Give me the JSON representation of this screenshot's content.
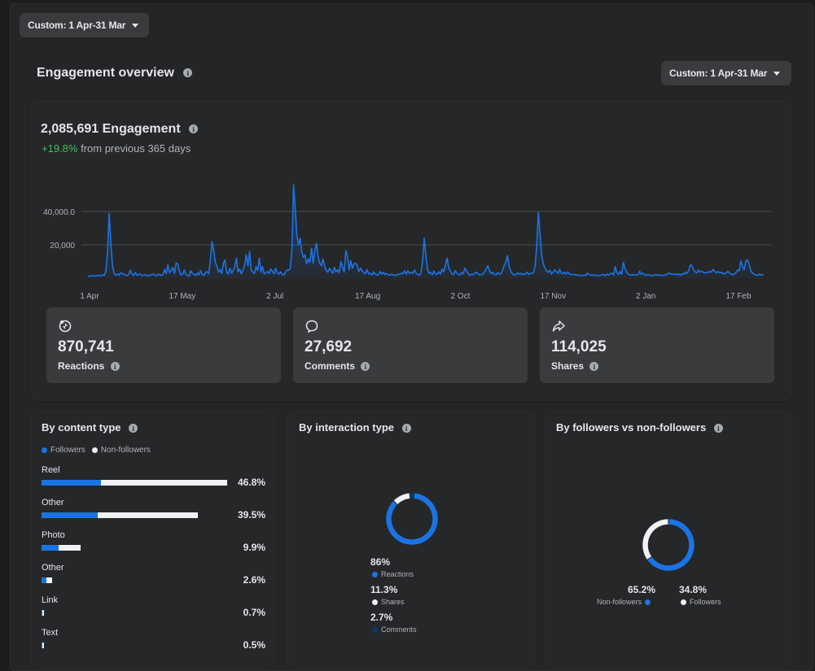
{
  "top_filter": {
    "label": "Custom: 1 Apr-31 Mar"
  },
  "engagement": {
    "section_title": "Engagement overview",
    "filter_label": "Custom: 1 Apr-31 Mar",
    "total": "2,085,691 Engagement",
    "change": "+19.8%",
    "change_text": "from previous 365 days"
  },
  "chart_data": {
    "type": "line",
    "x_ticks": [
      "1 Apr",
      "17 May",
      "2 Jul",
      "17 Aug",
      "2 Oct",
      "17 Nov",
      "2 Jan",
      "17 Feb"
    ],
    "y_ticks": [
      "40,000.0",
      "20,000"
    ],
    "ylim": [
      0,
      40000
    ],
    "grid": true,
    "series": [
      {
        "values": [
          1200,
          1100,
          1500,
          1300,
          1400,
          1200,
          1800,
          1500,
          1300,
          2000,
          1700,
          4000,
          16000,
          39000,
          21000,
          8000,
          3000,
          1800,
          2500,
          1600,
          3200,
          2800,
          2400,
          1800,
          1500,
          2200,
          4800,
          2500,
          1600,
          3400,
          1800,
          2200,
          2600,
          1500,
          1800,
          2200,
          1600,
          1400,
          1900,
          2100,
          2500,
          1800,
          1400,
          2400,
          2000,
          1500,
          2200,
          5200,
          2800,
          8000,
          3200,
          4500,
          6500,
          2800,
          9000,
          8500,
          4500,
          1800,
          2300,
          5000,
          2200,
          1600,
          1300,
          4500,
          2800,
          2400,
          1500,
          3000,
          2000,
          4600,
          2200,
          1600,
          3200,
          4000,
          2600,
          11000,
          22000,
          17000,
          10000,
          7000,
          3600,
          5200,
          2800,
          9000,
          11000,
          3400,
          2400,
          6000,
          3000,
          4500,
          7000,
          12000,
          3800,
          5500,
          2600,
          4800,
          8000,
          14000,
          7500,
          16000,
          5000,
          3800,
          2800,
          7000,
          4500,
          12000,
          3600,
          7000,
          2600,
          3000,
          4000,
          2800,
          5500,
          4200,
          2500,
          6000,
          3200,
          2500,
          3800,
          2200,
          1800,
          3600,
          5000,
          4800,
          6000,
          18000,
          56000,
          42000,
          26000,
          20000,
          24000,
          16000,
          12500,
          14000,
          8500,
          11500,
          9500,
          18000,
          9000,
          17000,
          21000,
          13000,
          9000,
          7500,
          11500,
          7200,
          4500,
          3600,
          6000,
          4500,
          3000,
          6500,
          3800,
          5000,
          3200,
          10000,
          6600,
          3600,
          16500,
          13000,
          5000,
          10500,
          6000,
          8500,
          9000,
          7500,
          4000,
          6000,
          4500,
          3200,
          2600,
          5200,
          2500,
          3000,
          2000,
          3800,
          2500,
          1800,
          2200,
          4000,
          2400,
          3500,
          2200,
          2800,
          2000,
          1800,
          2500,
          2000,
          1600,
          1800,
          2400,
          2200,
          3000,
          2600,
          4400,
          2400,
          4500,
          3000,
          3600,
          2800,
          5000,
          3000,
          2200,
          1800,
          2800,
          10000,
          24000,
          14000,
          5500,
          2800,
          3500,
          2000,
          4400,
          2600,
          2400,
          3800,
          2400,
          5500,
          3800,
          8000,
          12000,
          6000,
          4400,
          2500,
          2200,
          4500,
          3300,
          2200,
          1800,
          3400,
          2600,
          6000,
          4600,
          2800,
          1600,
          2400,
          2100,
          2900,
          3600,
          2700,
          1800,
          2200,
          2500,
          3800,
          5600,
          7500,
          4500,
          2800,
          3500,
          2200,
          2000,
          3200,
          2500,
          2800,
          4500,
          7500,
          9500,
          13500,
          7500,
          4000,
          2800,
          1800,
          2200,
          3100,
          2400,
          3000,
          2000,
          2800,
          2200,
          3600,
          2200,
          2800,
          3000,
          3200,
          7500,
          20000,
          39500,
          26000,
          14000,
          8500,
          6000,
          4200,
          3500,
          4800,
          2500,
          3600,
          5000,
          4000,
          2800,
          5200,
          3000,
          2600,
          3600,
          2400,
          3800,
          2600,
          2200,
          2100,
          2400,
          1800,
          2000,
          1700,
          1600,
          1700,
          1800,
          1600,
          3000,
          2200,
          1800,
          2000,
          1600,
          1700,
          1800,
          1500,
          1700,
          2100,
          2000,
          1500,
          2500,
          1800,
          2600,
          3000,
          1900,
          7000,
          3500,
          2200,
          4000,
          2400,
          9500,
          6000,
          3600,
          2600,
          2000,
          1800,
          2200,
          1800,
          1900,
          2100,
          4200,
          2300,
          3000,
          2100,
          1700,
          2200,
          1800,
          1600,
          1600,
          1800,
          2000,
          1700,
          2000,
          1800,
          1600,
          1700,
          2000,
          2400,
          3100,
          2600,
          2200,
          2400,
          2600,
          2000,
          2500,
          1800,
          2600,
          2300,
          3500,
          2900,
          4400,
          8000,
          7500,
          5000,
          3800,
          3200,
          4800,
          3600,
          4200,
          3600,
          3000,
          3500,
          3300,
          4200,
          3600,
          5300,
          4000,
          3200,
          4000,
          3200,
          3500,
          2900,
          2600,
          3100,
          4100,
          3000,
          2400,
          1900,
          2600,
          3200,
          5000,
          4400,
          10500,
          7000,
          5000,
          10000,
          11000,
          8600,
          4500,
          3200,
          2600,
          1800,
          1700,
          2400,
          1900,
          2200,
          2000
        ]
      }
    ]
  },
  "metrics": [
    {
      "icon": "reactions-icon",
      "value": "870,741",
      "label": "Reactions"
    },
    {
      "icon": "comment-icon",
      "value": "27,692",
      "label": "Comments"
    },
    {
      "icon": "share-icon",
      "value": "114,025",
      "label": "Shares"
    }
  ],
  "by_content": {
    "title": "By content type",
    "legend": [
      "Followers",
      "Non-followers"
    ],
    "rows": [
      {
        "label": "Reel",
        "pct": "46.8%",
        "total": 46.8,
        "followers_share": 0.32
      },
      {
        "label": "Other",
        "pct": "39.5%",
        "total": 39.5,
        "followers_share": 0.36
      },
      {
        "label": "Photo",
        "pct": "9.9%",
        "total": 9.9,
        "followers_share": 0.44
      },
      {
        "label": "Other",
        "pct": "2.6%",
        "total": 2.6,
        "followers_share": 0.5
      },
      {
        "label": "Link",
        "pct": "0.7%",
        "total": 0.7,
        "followers_share": 0.4
      },
      {
        "label": "Text",
        "pct": "0.5%",
        "total": 0.5,
        "followers_share": 0.4
      }
    ]
  },
  "by_interaction": {
    "title": "By interaction type",
    "items": [
      {
        "pct": "86%",
        "label": "Reactions",
        "color": "#1b74e4",
        "value": 86
      },
      {
        "pct": "11.3%",
        "label": "Shares",
        "color": "#f0f2f5",
        "value": 11.3
      },
      {
        "pct": "2.7%",
        "label": "Comments",
        "color": "#0a3a70",
        "value": 2.7
      }
    ]
  },
  "by_followers": {
    "title": "By followers vs non-followers",
    "items": [
      {
        "pct": "65.2%",
        "label": "Non-followers",
        "color": "#1b74e4",
        "value": 65.2
      },
      {
        "pct": "34.8%",
        "label": "Followers",
        "color": "#f0f2f5",
        "value": 34.8
      }
    ]
  },
  "colors": {
    "accent": "#1b74e4",
    "positive": "#45bd62"
  }
}
